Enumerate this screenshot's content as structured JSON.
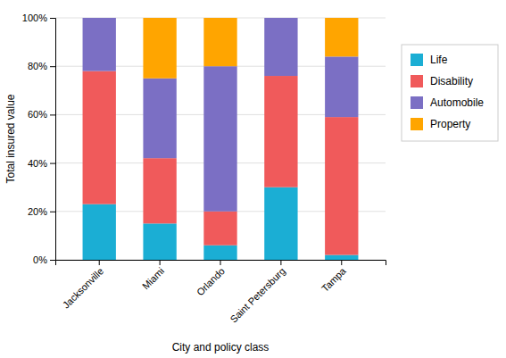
{
  "chart_data": {
    "type": "bar",
    "stacked": true,
    "xlabel": "City and policy class",
    "ylabel": "Total insured value",
    "categories": [
      "Jacksonville",
      "Miami",
      "Orlando",
      "Saint Petersburg",
      "Tampa"
    ],
    "series": [
      {
        "name": "Life",
        "color": "#1BAED4",
        "values": [
          23,
          15,
          6,
          30,
          2
        ]
      },
      {
        "name": "Disability",
        "color": "#F05A5B",
        "values": [
          55,
          27,
          14,
          46,
          57
        ]
      },
      {
        "name": "Automobile",
        "color": "#7B6FC4",
        "values": [
          22,
          33,
          60,
          24,
          25
        ]
      },
      {
        "name": "Property",
        "color": "#FFA500",
        "values": [
          0,
          25,
          20,
          0,
          16
        ]
      }
    ],
    "ylim": [
      0,
      100
    ],
    "yticks": [
      {
        "value": 0,
        "label": "0%"
      },
      {
        "value": 20,
        "label": "20%"
      },
      {
        "value": 40,
        "label": "40%"
      },
      {
        "value": 60,
        "label": "60%"
      },
      {
        "value": 80,
        "label": "80%"
      },
      {
        "value": 100,
        "label": "100%"
      }
    ],
    "grid": true,
    "legend": "right"
  }
}
